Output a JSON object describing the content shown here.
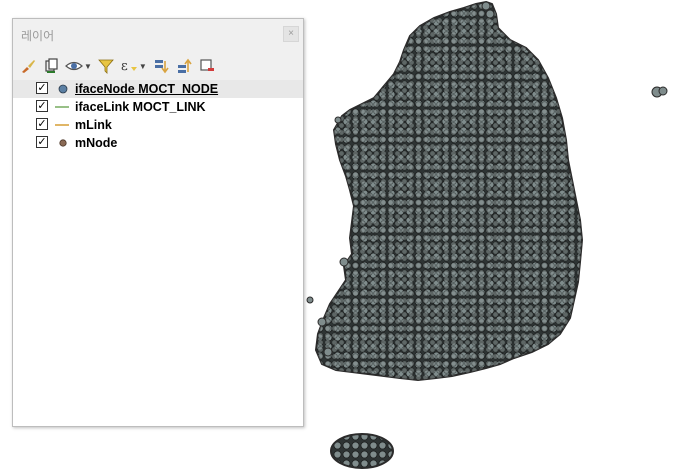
{
  "panel": {
    "title": "레이어",
    "close_glyph": "×"
  },
  "toolbar": {
    "buttons": [
      {
        "icon": "style-brush-icon"
      },
      {
        "icon": "add-group-icon"
      },
      {
        "icon": "visibility-eye-icon"
      },
      {
        "icon": "filter-funnel-icon"
      },
      {
        "icon": "expression-filter-icon"
      },
      {
        "icon": "expand-all-icon"
      },
      {
        "icon": "collapse-all-icon"
      },
      {
        "icon": "remove-layer-icon"
      }
    ]
  },
  "layers": [
    {
      "name": "ifaceNode MOCT_NODE",
      "checked": "✓",
      "symbol": "point",
      "color": "#5b7fa3",
      "selected": true
    },
    {
      "name": "ifaceLink MOCT_LINK",
      "checked": "✓",
      "symbol": "line",
      "color": "#7fb069",
      "selected": false
    },
    {
      "name": "mLink",
      "checked": "✓",
      "symbol": "line",
      "color": "#d9a441",
      "selected": false
    },
    {
      "name": "mNode",
      "checked": "✓",
      "symbol": "point",
      "color": "#8a6a55",
      "selected": false
    }
  ],
  "map": {
    "point_fill": "#7f8c8c",
    "point_stroke": "#2b2b2b",
    "background": "#ffffff"
  }
}
